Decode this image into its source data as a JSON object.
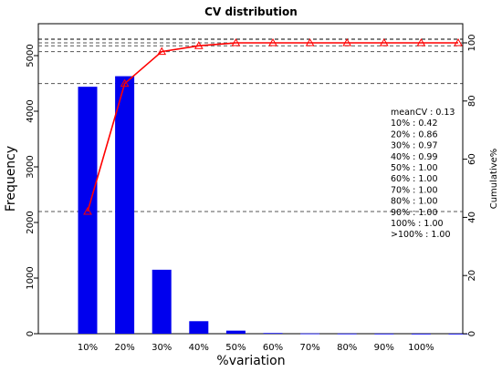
{
  "chart_data": {
    "type": "bar",
    "title": "CV distribution",
    "xlabel": "%variation",
    "ylabel": "Frequency",
    "y2label": "Cumulative%",
    "categories": [
      "10%",
      "20%",
      "30%",
      "40%",
      "50%",
      "60%",
      "70%",
      "80%",
      "90%",
      "100%",
      ""
    ],
    "series": [
      {
        "values": [
          4440,
          4630,
          1150,
          225,
          55,
          12,
          5,
          3,
          2,
          1,
          1
        ]
      },
      {
        "values": [
          42,
          86,
          97,
          99,
          100,
          100,
          100,
          100,
          100,
          100,
          100
        ],
        "axis": "right"
      }
    ],
    "ylim": [
      0,
      5000
    ],
    "y2lim": [
      0,
      100
    ],
    "yticks": [
      "0",
      "1000",
      "2000",
      "3000",
      "4000",
      "5000"
    ],
    "y2ticks": [
      "0",
      "20",
      "40",
      "60",
      "80",
      "100"
    ],
    "reference_lines": [
      {
        "axis": "right",
        "value": 42,
        "style": "dashed"
      },
      {
        "axis": "right",
        "value": 86,
        "style": "dashed"
      },
      {
        "axis": "right",
        "value": 97,
        "style": "dashed"
      },
      {
        "axis": "right",
        "value": 99,
        "style": "dashed"
      },
      {
        "axis": "right",
        "value": 100,
        "style": "dashed"
      }
    ],
    "annotations": [
      "meanCV : 0.13",
      "10% : 0.42",
      "20% : 0.86",
      "30% : 0.97",
      "40% : 0.99",
      "50% : 1.00",
      "60% : 1.00",
      "70% : 1.00",
      "80% : 1.00",
      "90% : 1.00",
      "100% : 1.00",
      ">100% : 1.00"
    ],
    "colors": {
      "bars": "#0000ee",
      "cumulative_line": "#ff0000",
      "reference_lines": "#555555"
    },
    "grid": false,
    "legend": "none"
  }
}
